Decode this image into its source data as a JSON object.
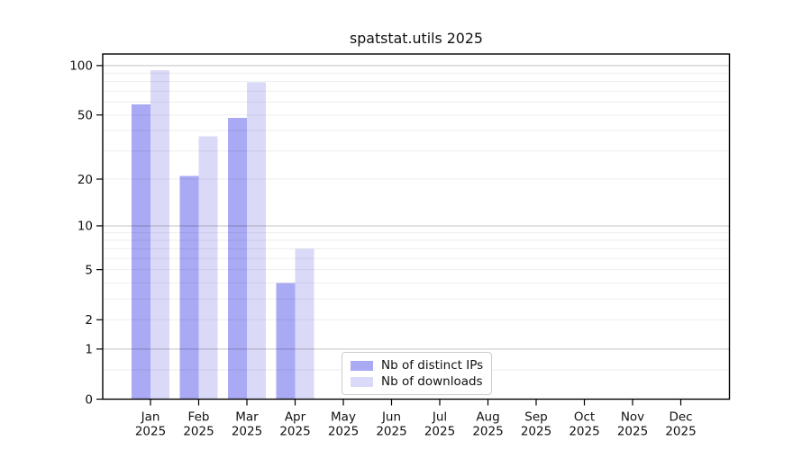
{
  "title": "spatstat.utils 2025",
  "legend": {
    "items": [
      {
        "label": "Nb of distinct IPs",
        "color": "#a9a9f4"
      },
      {
        "label": "Nb of downloads",
        "color": "#dadaf8"
      }
    ]
  },
  "axes": {
    "y_tick_labels": [
      "0",
      "1",
      "2",
      "5",
      "10",
      "20",
      "50",
      "100"
    ],
    "x_tick_year": "2025"
  },
  "chart_data": {
    "type": "bar",
    "title": "spatstat.utils 2025",
    "categories": [
      {
        "month": "Jan",
        "year": "2025"
      },
      {
        "month": "Feb",
        "year": "2025"
      },
      {
        "month": "Mar",
        "year": "2025"
      },
      {
        "month": "Apr",
        "year": "2025"
      },
      {
        "month": "May",
        "year": "2025"
      },
      {
        "month": "Jun",
        "year": "2025"
      },
      {
        "month": "Jul",
        "year": "2025"
      },
      {
        "month": "Aug",
        "year": "2025"
      },
      {
        "month": "Sep",
        "year": "2025"
      },
      {
        "month": "Oct",
        "year": "2025"
      },
      {
        "month": "Nov",
        "year": "2025"
      },
      {
        "month": "Dec",
        "year": "2025"
      }
    ],
    "series": [
      {
        "name": "Nb of distinct IPs",
        "color": "#a9a9f4",
        "values": [
          58,
          21,
          48,
          4,
          0,
          0,
          0,
          0,
          0,
          0,
          0,
          0
        ]
      },
      {
        "name": "Nb of downloads",
        "color": "#dadaf8",
        "values": [
          94,
          37,
          79,
          7,
          0,
          0,
          0,
          0,
          0,
          0,
          0,
          0
        ]
      }
    ],
    "yscale": "log1p",
    "ylim": [
      0,
      117.6
    ],
    "y_ticks": [
      0,
      1,
      2,
      5,
      10,
      20,
      50,
      100
    ],
    "y_major_gridlines": [
      1,
      10,
      100
    ],
    "y_minor_gridlines": [
      0.5,
      2,
      3,
      4,
      5,
      6,
      7,
      8,
      9,
      20,
      30,
      40,
      50,
      60,
      70,
      80,
      90
    ],
    "grid": true,
    "legend_position": "bottom-center",
    "xlabel": "",
    "ylabel": ""
  }
}
